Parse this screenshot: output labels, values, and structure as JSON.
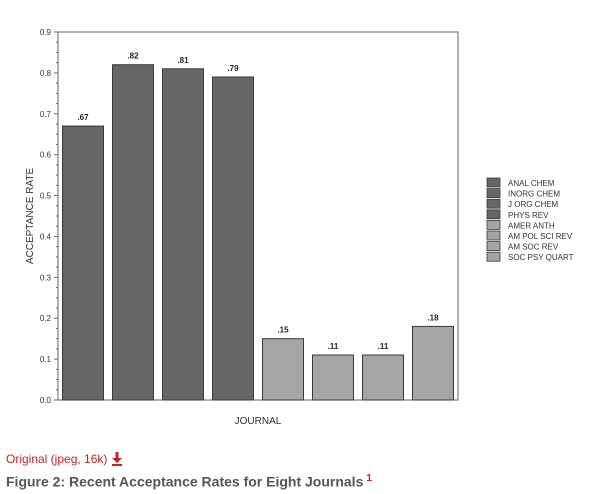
{
  "chart_data": {
    "type": "bar",
    "categories": [
      "ANAL CHEM",
      "INORG CHEM",
      "J ORG CHEM",
      "PHYS REV",
      "AMER ANTH",
      "AM POL SCI REV",
      "AM SOC REV",
      "SOC PSY QUART"
    ],
    "values": [
      0.67,
      0.82,
      0.81,
      0.79,
      0.15,
      0.11,
      0.11,
      0.18
    ],
    "data_labels": [
      ".67",
      ".82",
      ".81",
      ".79",
      ".15",
      ".11",
      ".11",
      ".18"
    ],
    "xlabel": "JOURNAL",
    "ylabel": "ACCEPTANCE RATE",
    "ylim": [
      0,
      0.9
    ],
    "yticks": [
      0.0,
      0.1,
      0.2,
      0.3,
      0.4,
      0.5,
      0.6,
      0.7,
      0.8,
      0.9
    ],
    "ytick_labels": [
      "0.0",
      "0.1",
      "0.2",
      "0.3",
      "0.4",
      "0.5",
      "0.6",
      "0.7",
      "0.8",
      "0.9"
    ],
    "grid": false,
    "legend": "right",
    "colors": [
      "#666666",
      "#666666",
      "#666666",
      "#666666",
      "#a5a5a5",
      "#a5a5a5",
      "#a5a5a5",
      "#a5a5a5"
    ]
  },
  "link": {
    "text": "Original (jpeg, 16k)"
  },
  "caption": {
    "text": "Figure 2: Recent Acceptance Rates for Eight Journals",
    "ref": "1"
  }
}
